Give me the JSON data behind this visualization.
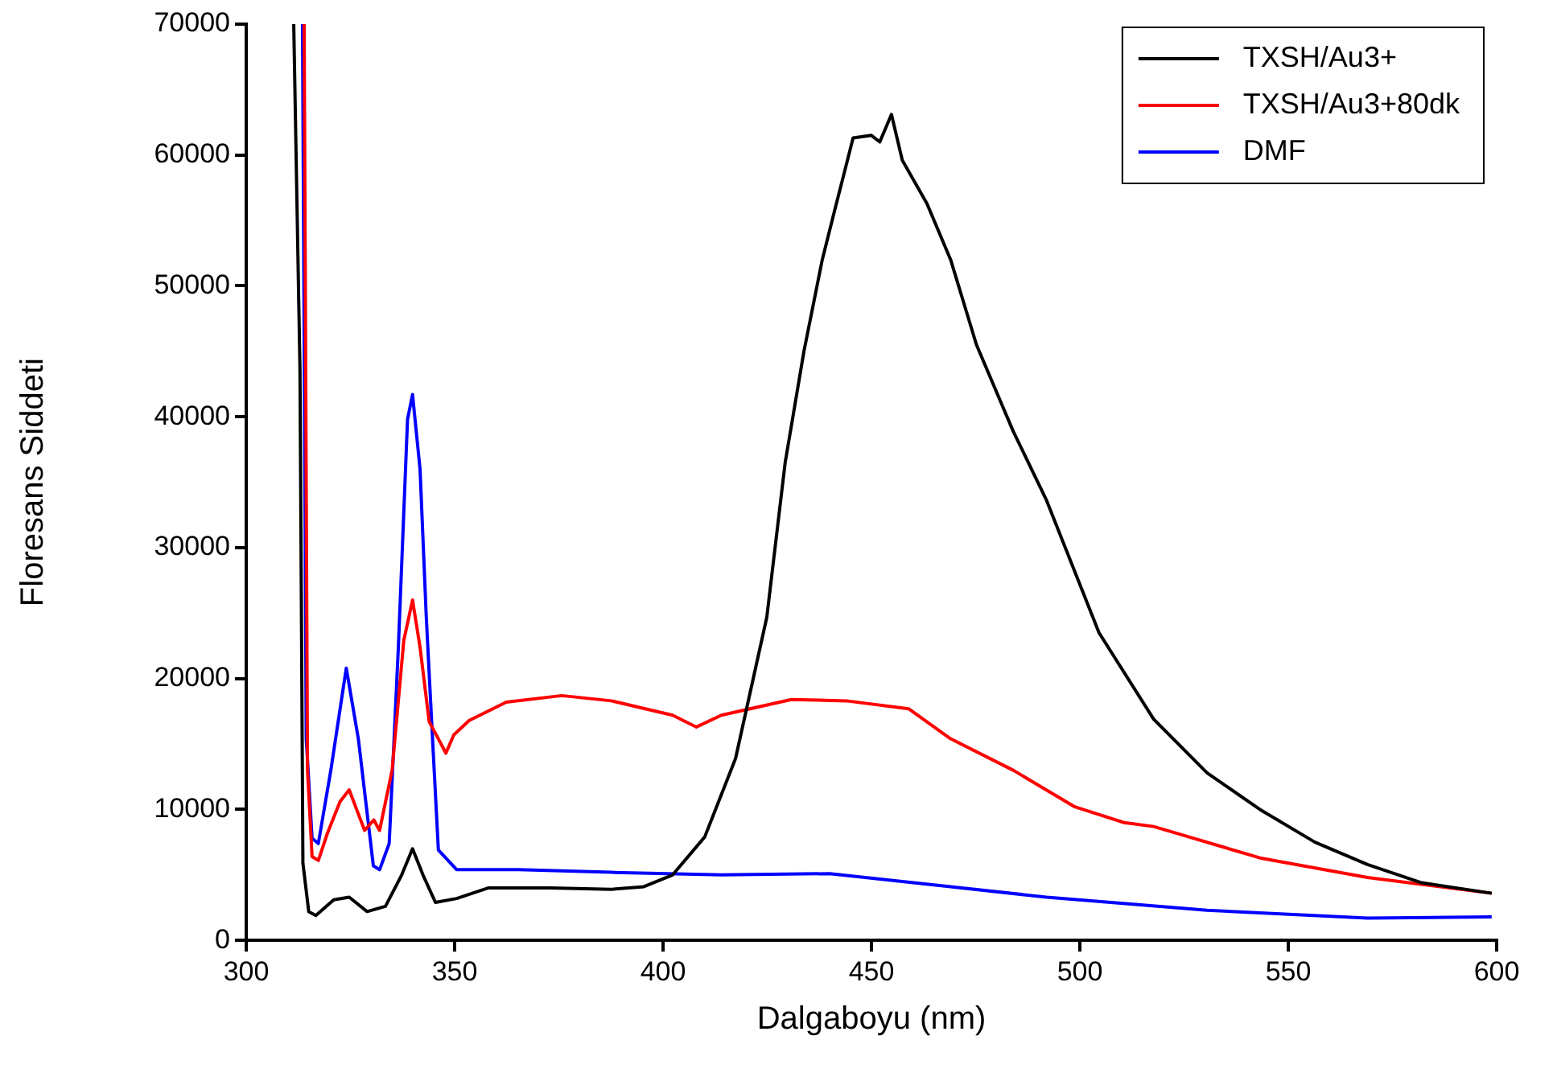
{
  "chart_data": {
    "type": "line",
    "xlabel": "Dalgaboyu (nm)",
    "ylabel": "Floresans Siddeti",
    "xlim": [
      300,
      600
    ],
    "xticks": [
      300,
      350,
      400,
      450,
      500,
      550,
      600
    ],
    "ylim": [
      0,
      70000
    ],
    "yticks": [
      0,
      10000,
      20000,
      30000,
      40000,
      50000,
      60000,
      70000
    ],
    "grid": false,
    "legend": "top right",
    "marker": "none",
    "line_style": "solid",
    "series": [
      {
        "name": "TXSH/Au3+",
        "color": "#000000",
        "x": [
          311.4,
          312.9,
          313.6,
          315,
          316.7,
          321,
          324.7,
          329,
          333.4,
          337.3,
          339.9,
          342.4,
          345.4,
          350.5,
          358,
          372.8,
          387.6,
          395.4,
          402.3,
          410,
          417.4,
          424.9,
          429.3,
          433.8,
          438.2,
          441.2,
          445.6,
          450,
          452,
          454.8,
          457.4,
          463.3,
          469,
          475.2,
          484,
          491.9,
          504.6,
          517.7,
          530.5,
          543.2,
          556.4,
          569,
          582,
          598.8
        ],
        "values": [
          70000,
          43500,
          5900,
          2200,
          1900,
          3100,
          3300,
          2200,
          2600,
          5000,
          7000,
          5000,
          2900,
          3200,
          4000,
          4000,
          3900,
          4100,
          5000,
          7900,
          13900,
          24700,
          36500,
          45000,
          52000,
          55800,
          61300,
          61500,
          61000,
          63100,
          59600,
          56300,
          52000,
          45500,
          38900,
          33700,
          23500,
          16900,
          12800,
          10000,
          7500,
          5800,
          4400,
          3600
        ]
      },
      {
        "name": "TXSH/Au3+80dk",
        "color": "#ff0000",
        "x": [
          313.9,
          314.7,
          315.8,
          317.3,
          319.5,
          322.5,
          324.7,
          328.4,
          330.6,
          332,
          335,
          337.8,
          339.9,
          341.7,
          343.9,
          346.1,
          347.9,
          349.8,
          353.5,
          362.4,
          375.7,
          387.6,
          402.3,
          408,
          414,
          430.8,
          444,
          458.9,
          469,
          484,
          498.8,
          510.6,
          517.7,
          543.2,
          569,
          598.8
        ],
        "values": [
          70000,
          13000,
          6400,
          6100,
          8200,
          10600,
          11500,
          8400,
          9200,
          8400,
          13000,
          22900,
          26000,
          22400,
          16700,
          15400,
          14300,
          15700,
          16800,
          18200,
          18700,
          18300,
          17200,
          16300,
          17200,
          18400,
          18300,
          17700,
          15400,
          13000,
          10200,
          9000,
          8700,
          6300,
          4800,
          3600
        ]
      },
      {
        "name": "DMF",
        "color": "#0000ff",
        "x": [
          313.5,
          314.4,
          315.8,
          317.3,
          320.3,
          324,
          326.9,
          330.5,
          332,
          334.3,
          336.5,
          338.7,
          339.9,
          341.7,
          343.2,
          344.7,
          346.1,
          350.5,
          365.3,
          387.6,
          414,
          440,
          469,
          492,
          530.5,
          569,
          598.8
        ],
        "values": [
          70000,
          15400,
          7800,
          7400,
          13000,
          20800,
          15400,
          5700,
          5400,
          7400,
          22400,
          39800,
          41700,
          36000,
          24700,
          15400,
          6900,
          5400,
          5400,
          5200,
          5000,
          5100,
          4100,
          3300,
          2300,
          1700,
          1800
        ]
      }
    ]
  }
}
